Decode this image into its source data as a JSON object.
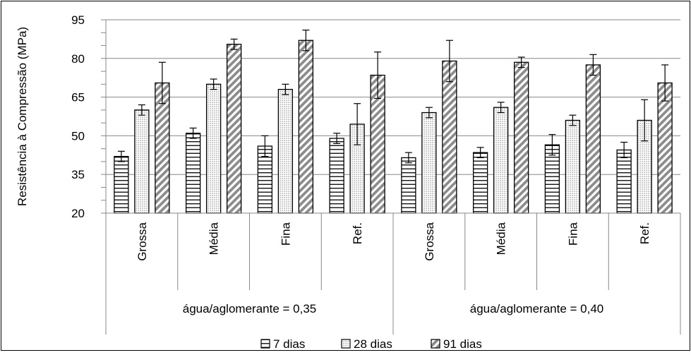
{
  "chart_data": {
    "type": "bar",
    "ylabel": "Resistência à Compressão (MPa)",
    "ylim": [
      20,
      95
    ],
    "yticks": [
      "20",
      "35",
      "50",
      "65",
      "80",
      "95"
    ],
    "ytick_values": [
      20,
      35,
      50,
      65,
      80,
      95
    ],
    "minor_tick_step": 5,
    "grid": true,
    "legend_position": "bottom",
    "categories": [
      "Grossa",
      "Média",
      "Fina",
      "Ref.",
      "Grossa",
      "Média",
      "Fina",
      "Ref."
    ],
    "groups": [
      {
        "label": "água/aglomerante = 0,35",
        "span": 4
      },
      {
        "label": "água/aglomerante = 0,40",
        "span": 4
      }
    ],
    "series": [
      {
        "name": "7 dias",
        "pattern": "horizontal-lines",
        "values": [
          42,
          51,
          46,
          49,
          41.5,
          43.5,
          46.5,
          44.5
        ],
        "errors": [
          2,
          2,
          4,
          2,
          2,
          2,
          4,
          3
        ]
      },
      {
        "name": "28 dias",
        "pattern": "dots",
        "values": [
          60,
          70,
          68,
          54.5,
          59,
          61,
          56,
          56
        ],
        "errors": [
          2,
          2,
          2,
          8,
          2,
          2,
          2,
          8
        ]
      },
      {
        "name": "91 dias",
        "pattern": "diagonal-stripes",
        "values": [
          70.5,
          85.5,
          87,
          73.5,
          79,
          78.5,
          77.5,
          70.5
        ],
        "errors": [
          8,
          2,
          4,
          9,
          8,
          2,
          4,
          7
        ]
      }
    ],
    "colors": {
      "stroke": "#000000",
      "grid": "#878787",
      "stripe": "#8c8c8c",
      "dot": "#555555"
    }
  }
}
